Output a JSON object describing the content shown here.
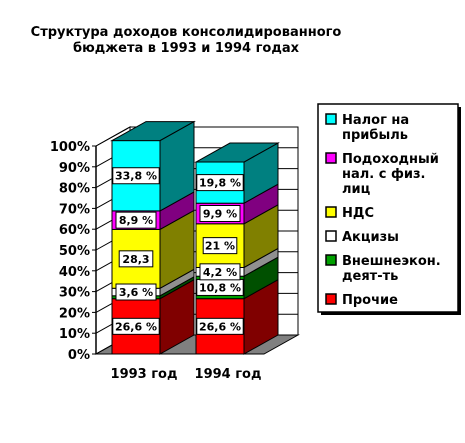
{
  "chart_data": {
    "type": "bar",
    "stacked": true,
    "three_d": true,
    "title": [
      "Структура доходов консолидированного",
      "бюджета в 1993 и 1994 годах"
    ],
    "categories": [
      "1993 год",
      "1994 год"
    ],
    "ylim": [
      0,
      100
    ],
    "y_ticks": [
      "0%",
      "10%",
      "20%",
      "30%",
      "40%",
      "50%",
      "60%",
      "70%",
      "80%",
      "90%",
      "100%"
    ],
    "legend_position": "right",
    "series": [
      {
        "name": "Прочие",
        "color": "#ff0000",
        "side_color": "#800000",
        "values": [
          26.6,
          26.6
        ],
        "labels": [
          "26,6 %",
          "26,6 %"
        ]
      },
      {
        "name": "Внешнеэкон. деят-ть",
        "color": "#00a000",
        "side_color": "#005000",
        "values": [
          1.4,
          10.8
        ],
        "labels": [
          "",
          "10,8 %"
        ]
      },
      {
        "name": "Акцизы",
        "color": "#ffffff",
        "side_color": "#909090",
        "values": [
          3.6,
          4.2
        ],
        "labels": [
          "3,6 %",
          "4,2 %"
        ]
      },
      {
        "name": "НДС",
        "color": "#ffff00",
        "side_color": "#808000",
        "values": [
          28.3,
          21
        ],
        "labels": [
          "28,3",
          "21 %"
        ]
      },
      {
        "name": "Подоходный нал. с физ. лиц",
        "color": "#ff00ff",
        "side_color": "#800080",
        "values": [
          8.9,
          9.9
        ],
        "labels": [
          "8,9 %",
          "9,9 %"
        ]
      },
      {
        "name": "Налог на прибыль",
        "color": "#00ffff",
        "side_color": "#008080",
        "values": [
          33.8,
          19.8
        ],
        "labels": [
          "33,8 %",
          "19,8 %"
        ]
      }
    ],
    "legend": [
      {
        "series": 5,
        "lines": [
          "Налог на",
          "прибыль"
        ]
      },
      {
        "series": 4,
        "lines": [
          "Подоходный",
          "нал. с физ.",
          "лиц"
        ]
      },
      {
        "series": 3,
        "lines": [
          "НДС"
        ]
      },
      {
        "series": 2,
        "lines": [
          "Акцизы"
        ]
      },
      {
        "series": 1,
        "lines": [
          "Внешнеэкон.",
          "деят-ть"
        ]
      },
      {
        "series": 0,
        "lines": [
          "Прочие"
        ]
      }
    ]
  }
}
